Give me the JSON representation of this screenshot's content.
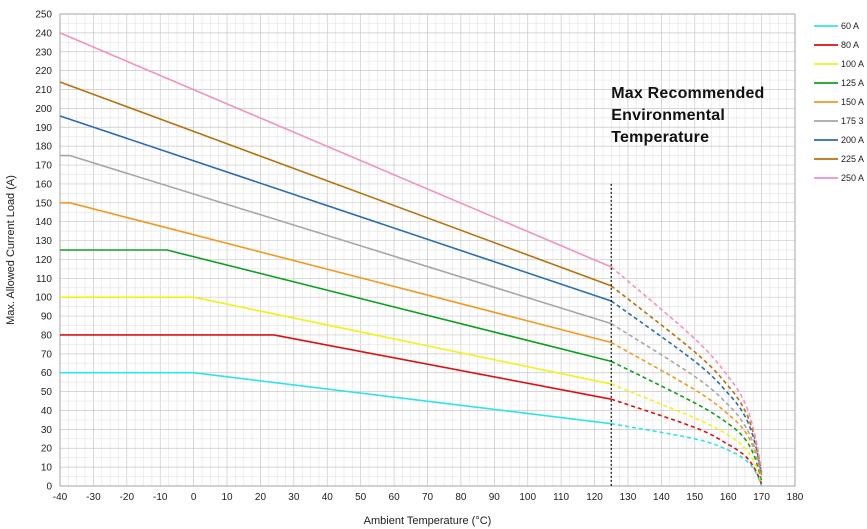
{
  "chart_data": {
    "type": "line",
    "xlabel": "Ambient Temperature (°C)",
    "ylabel": "Max. Allowed Current Load (A)",
    "xlim": [
      -40,
      180
    ],
    "ylim": [
      0,
      250
    ],
    "x_ticks": [
      "-40",
      "-30",
      "-20",
      "-10",
      "0",
      "10",
      "20",
      "30",
      "40",
      "50",
      "60",
      "70",
      "80",
      "90",
      "100",
      "110",
      "120",
      "130",
      "140",
      "150",
      "160",
      "170",
      "180"
    ],
    "y_ticks": [
      "0",
      "10",
      "20",
      "30",
      "40",
      "50",
      "60",
      "70",
      "80",
      "90",
      "100",
      "110",
      "120",
      "130",
      "140",
      "150",
      "160",
      "170",
      "180",
      "190",
      "200",
      "210",
      "220",
      "230",
      "240",
      "250"
    ],
    "grid": true,
    "legend_position": "right",
    "annotation": {
      "lines": [
        "Max Recommended",
        "Environmental",
        "Temperature"
      ],
      "x": 125
    },
    "series": [
      {
        "name": "60 A",
        "color": "#2de4ec",
        "points": [
          [
            -40,
            60
          ],
          [
            0,
            60
          ],
          [
            125,
            33
          ],
          [
            150,
            25
          ],
          [
            160,
            19
          ],
          [
            165,
            14
          ],
          [
            168,
            8
          ],
          [
            170,
            0
          ]
        ]
      },
      {
        "name": "80 A",
        "color": "#e01010",
        "points": [
          [
            -40,
            80
          ],
          [
            24,
            80
          ],
          [
            125,
            46
          ],
          [
            150,
            31
          ],
          [
            160,
            22
          ],
          [
            165,
            16
          ],
          [
            168,
            9
          ],
          [
            170,
            1
          ]
        ]
      },
      {
        "name": "100 A",
        "color": "#f2f21a",
        "points": [
          [
            -40,
            100
          ],
          [
            0,
            100
          ],
          [
            125,
            54
          ],
          [
            150,
            36
          ],
          [
            160,
            27
          ],
          [
            165,
            20
          ],
          [
            168,
            12
          ],
          [
            170,
            2
          ]
        ]
      },
      {
        "name": "125 A",
        "color": "#10a020",
        "points": [
          [
            -40,
            125
          ],
          [
            -8,
            125
          ],
          [
            125,
            66
          ],
          [
            150,
            44
          ],
          [
            160,
            33
          ],
          [
            165,
            25
          ],
          [
            168,
            15
          ],
          [
            170,
            3
          ]
        ]
      },
      {
        "name": "150 A",
        "color": "#f29a1e",
        "points": [
          [
            -40,
            150
          ],
          [
            -37,
            150
          ],
          [
            125,
            76
          ],
          [
            150,
            51
          ],
          [
            160,
            38
          ],
          [
            165,
            29
          ],
          [
            168,
            18
          ],
          [
            170,
            4
          ]
        ]
      },
      {
        "name": "175 3",
        "color": "#a6a6a6",
        "points": [
          [
            -40,
            175
          ],
          [
            -37,
            175
          ],
          [
            125,
            86
          ],
          [
            150,
            58
          ],
          [
            160,
            43
          ],
          [
            165,
            32
          ],
          [
            168,
            20
          ],
          [
            170,
            5
          ]
        ]
      },
      {
        "name": "200 A",
        "color": "#2a6cb0",
        "points": [
          [
            -40,
            196
          ],
          [
            125,
            98
          ],
          [
            150,
            66
          ],
          [
            160,
            49
          ],
          [
            165,
            37
          ],
          [
            168,
            23
          ],
          [
            170,
            6
          ]
        ]
      },
      {
        "name": "225 A",
        "color": "#b8720a",
        "points": [
          [
            -40,
            214
          ],
          [
            125,
            106
          ],
          [
            150,
            71
          ],
          [
            160,
            53
          ],
          [
            165,
            40
          ],
          [
            168,
            25
          ],
          [
            170,
            7
          ]
        ]
      },
      {
        "name": "250 A",
        "color": "#f391c2",
        "points": [
          [
            -40,
            240
          ],
          [
            125,
            116
          ],
          [
            150,
            78
          ],
          [
            160,
            58
          ],
          [
            165,
            44
          ],
          [
            168,
            27
          ],
          [
            170,
            8
          ]
        ]
      }
    ]
  }
}
